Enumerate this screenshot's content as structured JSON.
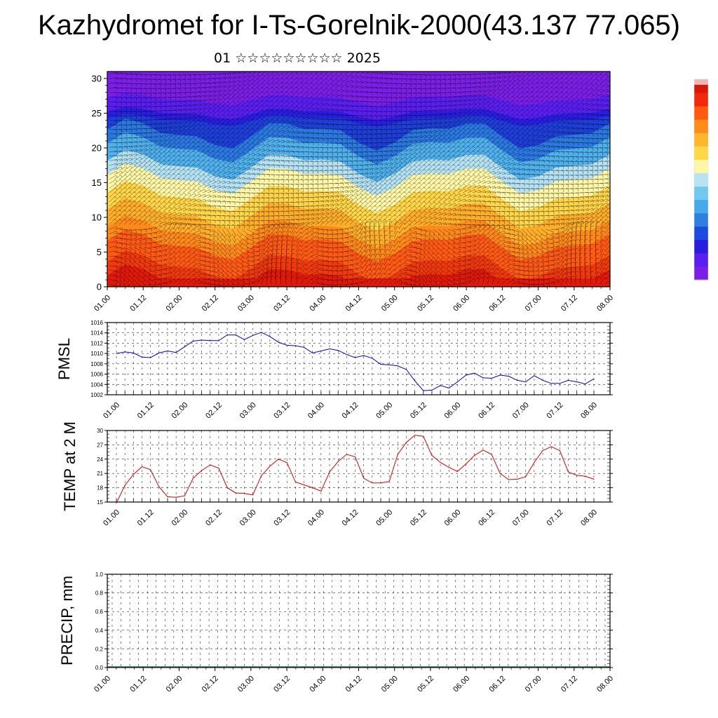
{
  "title": "Kazhydromet for I-Ts-Gorelnik-2000(43.137 77.065)",
  "subtitle": "01 ☆☆☆☆☆☆☆☆☆ 2025",
  "colors": {
    "pmsl_line": "#0000cc",
    "temp_line": "#dd0000",
    "barb_color": "#000000",
    "palette": [
      "#7b1fe6",
      "#5a1ff0",
      "#2a1de0",
      "#1d4bdc",
      "#2f7fe0",
      "#45a9ec",
      "#73c8f0",
      "#b9e3f2",
      "#fff7a8",
      "#ffd84a",
      "#ffb52e",
      "#ff8c1a",
      "#ff5a10",
      "#f02a0a",
      "#d7190a"
    ]
  },
  "time_ticks": [
    "01.00",
    "01.12",
    "02.00",
    "02.12",
    "03.00",
    "03.12",
    "04.00",
    "04.12",
    "05.00",
    "05.12",
    "06.00",
    "06.12",
    "07.00",
    "07.12",
    "08.00"
  ],
  "chart_data": [
    {
      "type": "heatmap",
      "name": "wind_temperature_section",
      "title": "",
      "x_ticks": [
        "01.00",
        "01.12",
        "02.00",
        "02.12",
        "03.00",
        "03.12",
        "04.00",
        "04.12",
        "05.00",
        "05.12",
        "06.00",
        "06.12",
        "07.00",
        "07.12",
        "08.00"
      ],
      "yticks": [
        0,
        5,
        10,
        15,
        20,
        25,
        30
      ],
      "ylim": [
        0,
        31
      ],
      "xlim_hours": [
        0,
        168
      ],
      "bands": [
        {
          "level": 1,
          "color": "#e01a0a"
        },
        {
          "level": 3,
          "color": "#f03a0c"
        },
        {
          "level": 6,
          "color": "#ff5a12"
        },
        {
          "level": 8,
          "color": "#ff8a1a"
        },
        {
          "level": 10.5,
          "color": "#ffae2a"
        },
        {
          "level": 13,
          "color": "#ffd54a"
        },
        {
          "level": 15.5,
          "color": "#fff7a8"
        },
        {
          "level": 17.5,
          "color": "#b4e2f2"
        },
        {
          "level": 20,
          "color": "#4fb0ec"
        },
        {
          "level": 22,
          "color": "#2a78e0"
        },
        {
          "level": 24,
          "color": "#1e3ed8"
        },
        {
          "level": 25,
          "color": "#2a1de0"
        },
        {
          "level": 27,
          "color": "#5a1ff0"
        },
        {
          "level": 31,
          "color": "#7b1fe6"
        }
      ],
      "grid": false,
      "legend": "right colorbar"
    },
    {
      "type": "line",
      "name": "pmsl",
      "ylabel": "PMSL",
      "xlabel": "",
      "ylim": [
        1002,
        1016
      ],
      "yticks": [
        1002,
        1004,
        1006,
        1008,
        1010,
        1012,
        1014,
        1016
      ],
      "x_ticks": [
        "01.00",
        "01.12",
        "02.00",
        "02.12",
        "03.00",
        "03.12",
        "04.00",
        "04.12",
        "05.00",
        "05.12",
        "06.00",
        "06.12",
        "07.00",
        "07.12",
        "08.00"
      ],
      "step_hours": 3,
      "values": [
        1010.0,
        1010.3,
        1010.1,
        1009.3,
        1009.2,
        1010.1,
        1010.5,
        1010.2,
        1011.3,
        1012.4,
        1012.6,
        1012.5,
        1012.5,
        1013.6,
        1013.6,
        1012.7,
        1013.5,
        1014.1,
        1013.3,
        1012.2,
        1011.6,
        1011.5,
        1011.2,
        1010.1,
        1010.5,
        1010.9,
        1010.6,
        1009.8,
        1009.2,
        1009.6,
        1009.1,
        1007.9,
        1007.8,
        1007.6,
        1006.9,
        1004.7,
        1002.8,
        1002.9,
        1003.8,
        1003.3,
        1004.5,
        1005.8,
        1006.2,
        1005.3,
        1005.2,
        1005.8,
        1005.6,
        1004.8,
        1004.5,
        1005.7,
        1004.8,
        1004.2,
        1004.2,
        1004.8,
        1004.5,
        1004.1,
        1005.1
      ],
      "grid": true
    },
    {
      "type": "line",
      "name": "temp_2m",
      "ylabel": "TEMP at 2 M",
      "xlabel": "",
      "ylim": [
        15,
        30
      ],
      "yticks": [
        15,
        18,
        21,
        24,
        27,
        30
      ],
      "x_ticks": [
        "01.00",
        "01.12",
        "02.00",
        "02.12",
        "03.00",
        "03.12",
        "04.00",
        "04.12",
        "05.00",
        "05.12",
        "06.00",
        "06.12",
        "07.00",
        "07.12",
        "08.00"
      ],
      "step_hours": 3,
      "values": [
        14.8,
        18.5,
        20.8,
        22.4,
        21.8,
        18.2,
        16.1,
        16.0,
        16.3,
        20.0,
        21.6,
        22.8,
        22.1,
        18.0,
        16.9,
        16.8,
        16.5,
        20.5,
        22.5,
        24.0,
        23.3,
        19.2,
        18.6,
        18.0,
        17.3,
        21.3,
        23.5,
        25.0,
        24.5,
        20.0,
        19.0,
        19.0,
        19.3,
        25.0,
        27.5,
        29.0,
        28.8,
        24.8,
        23.3,
        22.3,
        21.4,
        23.0,
        24.8,
        25.9,
        25.0,
        21.0,
        19.7,
        19.8,
        20.3,
        23.3,
        25.8,
        26.6,
        25.8,
        21.3,
        20.6,
        20.4,
        19.8
      ],
      "grid": true
    },
    {
      "type": "bar",
      "name": "precip",
      "ylabel": "PRECIP, mm",
      "xlabel": "",
      "ylim": [
        0.0,
        1.0
      ],
      "yticks": [
        "0.0",
        "0.2",
        "0.4",
        "0.6",
        "0.8",
        "1.0"
      ],
      "x_ticks": [
        "01.00",
        "01.12",
        "02.00",
        "02.12",
        "03.00",
        "03.12",
        "04.00",
        "04.12",
        "05.00",
        "05.12",
        "06.00",
        "06.12",
        "07.00",
        "07.12",
        "08.00"
      ],
      "step_hours": 3,
      "values": [
        0,
        0,
        0,
        0,
        0,
        0,
        0,
        0,
        0,
        0,
        0,
        0,
        0,
        0,
        0,
        0,
        0,
        0,
        0,
        0,
        0,
        0,
        0,
        0,
        0,
        0,
        0,
        0,
        0,
        0,
        0,
        0,
        0,
        0,
        0,
        0,
        0,
        0,
        0,
        0,
        0,
        0,
        0,
        0,
        0,
        0,
        0,
        0,
        0,
        0,
        0,
        0,
        0,
        0,
        0,
        0,
        0
      ],
      "grid": true
    }
  ]
}
